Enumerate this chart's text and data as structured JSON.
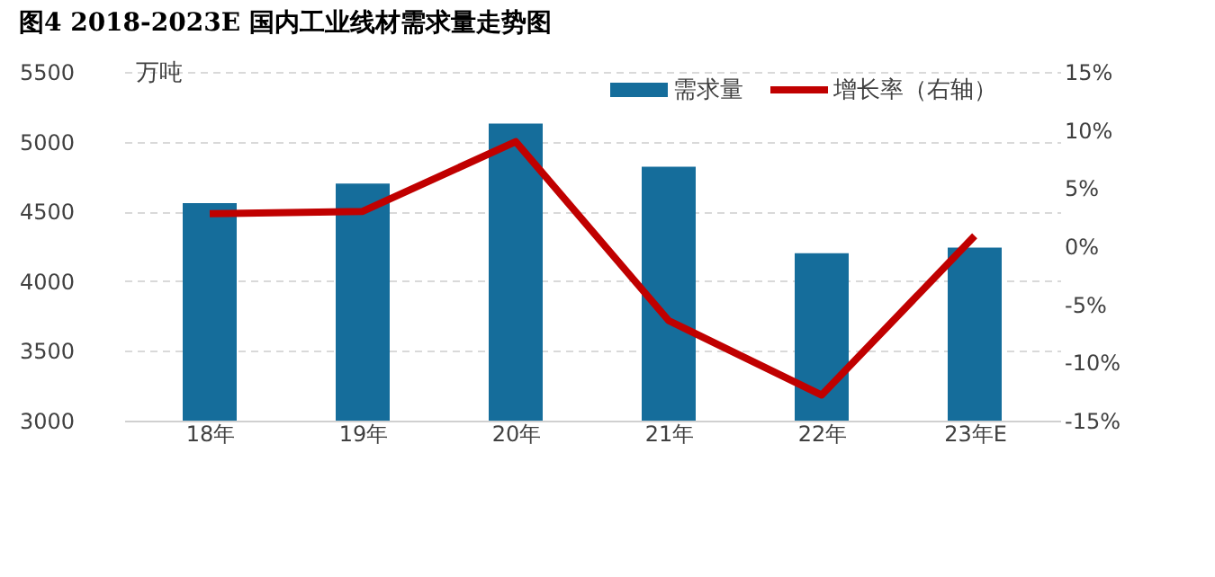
{
  "chart_data": {
    "type": "bar",
    "title": "图4 2018-2023E 国内工业线材需求量走势图",
    "categories": [
      "18年",
      "19年",
      "20年",
      "21年",
      "22年",
      "23年E"
    ],
    "series": [
      {
        "name": "需求量",
        "color": "#156d9b",
        "values": [
          4560,
          4700,
          5130,
          4820,
          4200,
          4240
        ]
      },
      {
        "name": "增长率（右轴）",
        "type": "line",
        "axis": "y2",
        "color": "#c00000",
        "values": [
          2.8,
          3.0,
          9.0,
          -6.4,
          -12.8,
          0.9
        ]
      }
    ],
    "ylabel": "万吨",
    "ylim": [
      3000,
      5500
    ],
    "yticks": [
      3000,
      3500,
      4000,
      4500,
      5000,
      5500
    ],
    "y2lim": [
      -15,
      15
    ],
    "y2ticks": [
      {
        "value": -15,
        "label": "-15%"
      },
      {
        "value": -10,
        "label": "-10%"
      },
      {
        "value": -5,
        "label": "-5%"
      },
      {
        "value": 0,
        "label": "0%"
      },
      {
        "value": 5,
        "label": "5%"
      },
      {
        "value": 10,
        "label": "10%"
      },
      {
        "value": 15,
        "label": "15%"
      }
    ],
    "grid": "y",
    "legend": "top right",
    "marker": "none",
    "line_style": "solid"
  }
}
